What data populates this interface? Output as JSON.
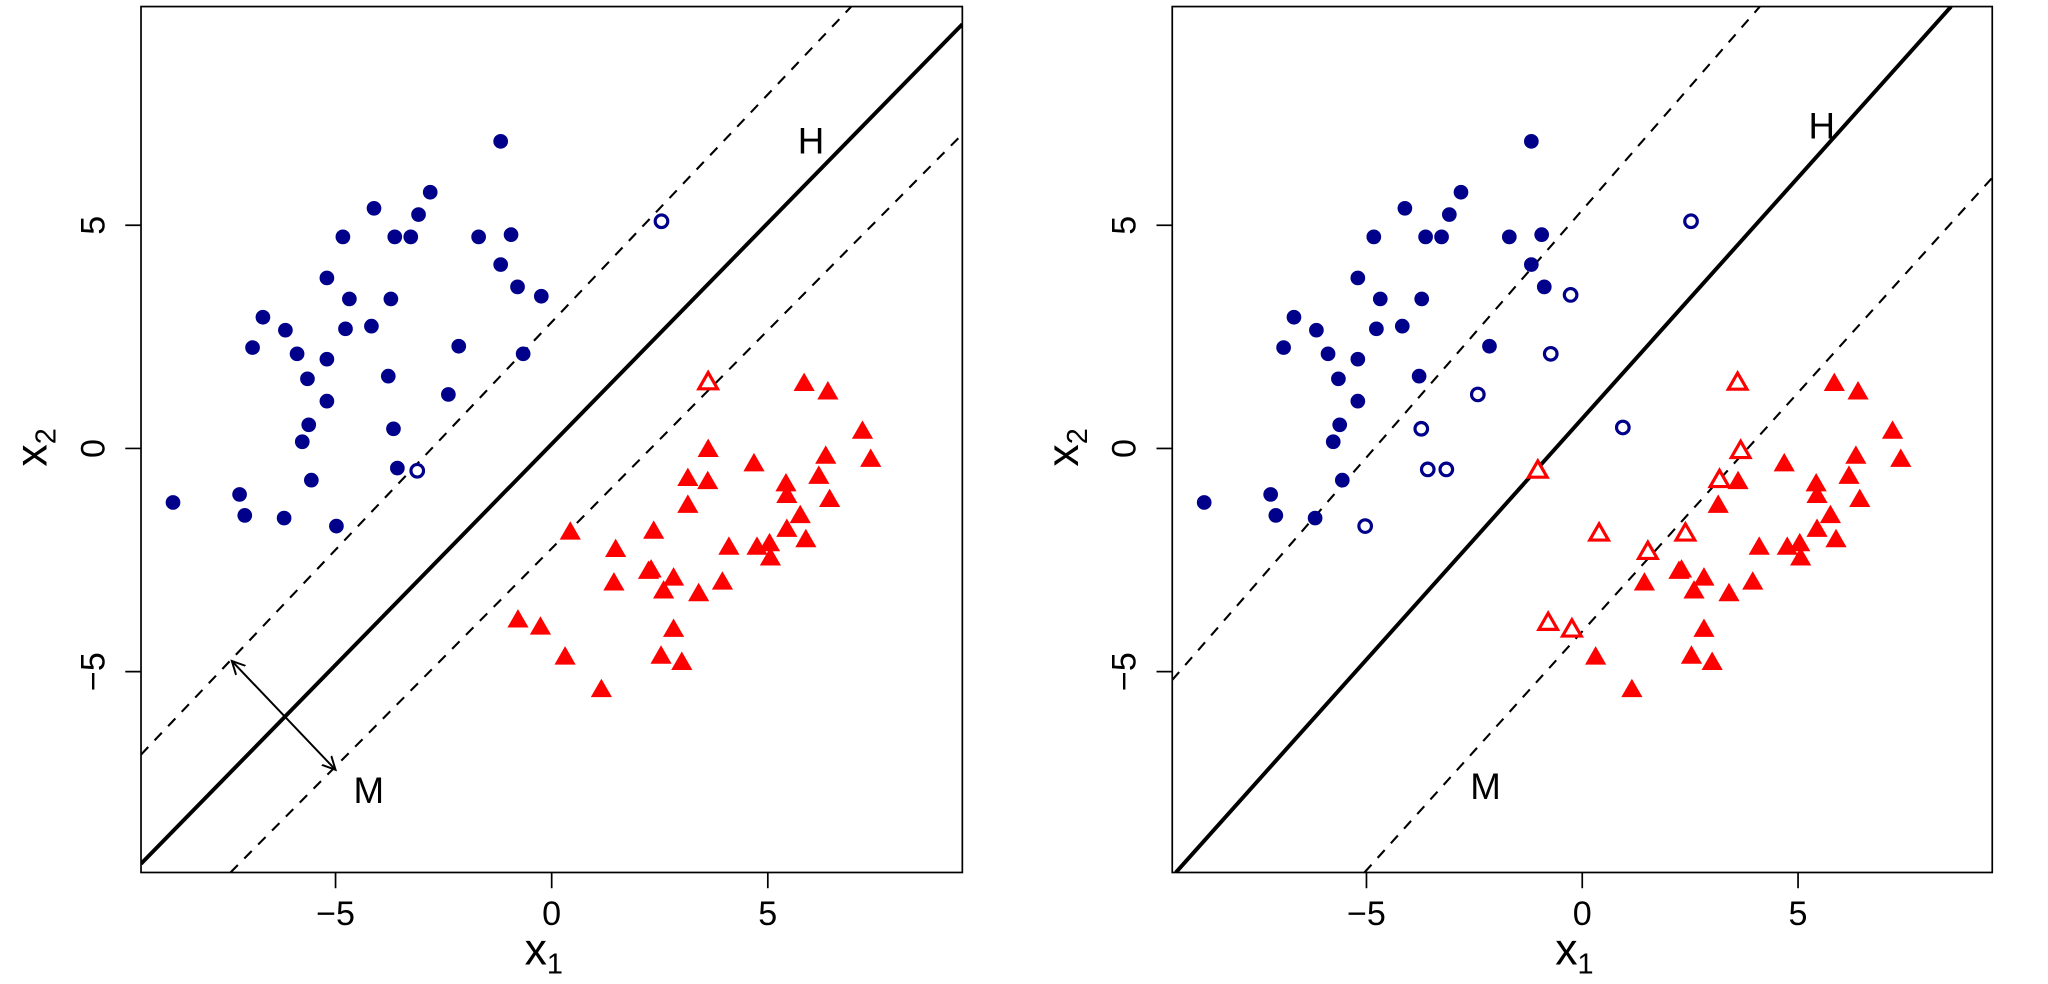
{
  "colors": {
    "class_a": "#00008B",
    "class_b": "#FF0000",
    "lines": "#000000"
  },
  "chart_data": [
    {
      "type": "scatter",
      "xlabel": "x",
      "xlabel_sub": "1",
      "ylabel": "x",
      "ylabel_sub": "2",
      "xlim": [
        -9.5,
        9.5
      ],
      "ylim": [
        -9.5,
        9.9
      ],
      "xticks": [
        -5,
        0,
        5
      ],
      "xtick_labels": [
        "−5",
        "0",
        "5"
      ],
      "yticks": [
        -5,
        0,
        5
      ],
      "ytick_labels": [
        "−5",
        "0",
        "5"
      ],
      "grid": false,
      "circles": [
        [
          -8.76,
          -1.21
        ],
        [
          -7.22,
          -1.03
        ],
        [
          -7.1,
          -1.5
        ],
        [
          -6.92,
          2.26
        ],
        [
          -6.68,
          2.94
        ],
        [
          -6.19,
          -1.56
        ],
        [
          -6.16,
          2.65
        ],
        [
          -5.89,
          2.12
        ],
        [
          -5.77,
          0.15
        ],
        [
          -5.65,
          1.56
        ],
        [
          -5.62,
          0.53
        ],
        [
          -5.56,
          -0.71
        ],
        [
          -5.2,
          2.0
        ],
        [
          -5.2,
          3.82
        ],
        [
          -5.2,
          1.06
        ],
        [
          -4.98,
          -1.74
        ],
        [
          -4.83,
          4.74
        ],
        [
          -4.77,
          2.68
        ],
        [
          -4.68,
          3.35
        ],
        [
          -4.17,
          2.74
        ],
        [
          -4.11,
          5.38
        ],
        [
          -3.63,
          4.74
        ],
        [
          -3.78,
          1.62
        ],
        [
          -3.72,
          3.35
        ],
        [
          -3.66,
          0.44
        ],
        [
          -3.57,
          -0.44
        ],
        [
          -3.26,
          4.74
        ],
        [
          -3.08,
          5.24
        ],
        [
          -2.81,
          5.74
        ],
        [
          -2.15,
          2.29
        ],
        [
          -2.39,
          1.21
        ],
        [
          -1.69,
          4.74
        ],
        [
          -1.18,
          6.88
        ],
        [
          -1.18,
          4.12
        ],
        [
          -0.94,
          4.79
        ],
        [
          -0.79,
          3.62
        ],
        [
          -0.66,
          2.12
        ],
        [
          -0.24,
          3.41
        ]
      ],
      "circles_open": [
        [
          -3.11,
          -0.5
        ],
        [
          2.54,
          5.09
        ]
      ],
      "triangles": [
        [
          5.84,
          1.45
        ],
        [
          6.39,
          1.26
        ],
        [
          7.19,
          0.38
        ],
        [
          3.62,
          -0.03
        ],
        [
          4.68,
          -0.35
        ],
        [
          6.34,
          -0.18
        ],
        [
          7.38,
          -0.25
        ],
        [
          3.15,
          -0.68
        ],
        [
          3.61,
          -0.75
        ],
        [
          5.42,
          -0.8
        ],
        [
          6.18,
          -0.63
        ],
        [
          5.44,
          -1.06
        ],
        [
          6.43,
          -1.15
        ],
        [
          3.15,
          -1.28
        ],
        [
          5.75,
          -1.51
        ],
        [
          0.43,
          -1.88
        ],
        [
          2.36,
          -1.86
        ],
        [
          5.44,
          -1.82
        ],
        [
          5.88,
          -2.05
        ],
        [
          1.48,
          -2.27
        ],
        [
          4.1,
          -2.22
        ],
        [
          4.75,
          -2.22
        ],
        [
          5.04,
          -2.14
        ],
        [
          5.06,
          -2.46
        ],
        [
          2.24,
          -2.76
        ],
        [
          2.3,
          -2.73
        ],
        [
          2.82,
          -2.91
        ],
        [
          1.44,
          -3.02
        ],
        [
          2.59,
          -3.2
        ],
        [
          3.4,
          -3.26
        ],
        [
          3.95,
          -3.0
        ],
        [
          -0.78,
          -3.85
        ],
        [
          -0.26,
          -4.01
        ],
        [
          2.82,
          -4.06
        ],
        [
          0.31,
          -4.68
        ],
        [
          2.53,
          -4.66
        ],
        [
          3.01,
          -4.8
        ],
        [
          1.15,
          -5.41
        ]
      ],
      "triangles_open": [
        [
          3.62,
          1.48
        ]
      ],
      "hyperplane": {
        "slope": 0.99,
        "intercept": 0.1,
        "label": "H",
        "label_at": [
          6.0,
          6.9
        ]
      },
      "margins": [
        {
          "slope": 1.02,
          "intercept": 2.83
        },
        {
          "slope": 0.977,
          "intercept": -2.24
        }
      ],
      "margin_arrow": [
        [
          -7.4,
          -4.76
        ],
        [
          -5.0,
          -7.2
        ]
      ],
      "margin_label": {
        "text": "M",
        "at": [
          -4.23,
          -7.65
        ]
      }
    },
    {
      "type": "scatter",
      "xlabel": "x",
      "xlabel_sub": "1",
      "ylabel": "x",
      "ylabel_sub": "2",
      "xlim": [
        -9.5,
        9.5
      ],
      "ylim": [
        -9.5,
        9.9
      ],
      "xticks": [
        -5,
        0,
        5
      ],
      "xtick_labels": [
        "−5",
        "0",
        "5"
      ],
      "yticks": [
        -5,
        0,
        5
      ],
      "ytick_labels": [
        "−5",
        "0",
        "5"
      ],
      "grid": false,
      "circles": [
        [
          -8.76,
          -1.21
        ],
        [
          -7.22,
          -1.03
        ],
        [
          -7.1,
          -1.5
        ],
        [
          -6.92,
          2.26
        ],
        [
          -6.68,
          2.94
        ],
        [
          -6.19,
          -1.56
        ],
        [
          -6.16,
          2.65
        ],
        [
          -5.89,
          2.12
        ],
        [
          -5.77,
          0.15
        ],
        [
          -5.65,
          1.56
        ],
        [
          -5.62,
          0.53
        ],
        [
          -5.56,
          -0.71
        ],
        [
          -5.2,
          2.0
        ],
        [
          -5.2,
          3.82
        ],
        [
          -5.2,
          1.06
        ],
        [
          -4.83,
          4.74
        ],
        [
          -4.77,
          2.68
        ],
        [
          -4.68,
          3.35
        ],
        [
          -4.17,
          2.74
        ],
        [
          -4.11,
          5.38
        ],
        [
          -3.63,
          4.74
        ],
        [
          -3.78,
          1.62
        ],
        [
          -3.72,
          3.35
        ],
        [
          -3.26,
          4.74
        ],
        [
          -3.08,
          5.24
        ],
        [
          -2.81,
          5.74
        ],
        [
          -2.15,
          2.29
        ],
        [
          -1.69,
          4.74
        ],
        [
          -1.18,
          6.88
        ],
        [
          -1.18,
          4.12
        ],
        [
          -0.94,
          4.79
        ],
        [
          -0.88,
          3.62
        ]
      ],
      "circles_open": [
        [
          -3.73,
          0.44
        ],
        [
          -3.58,
          -0.47
        ],
        [
          -3.15,
          -0.47
        ],
        [
          -5.03,
          -1.74
        ],
        [
          -2.42,
          1.21
        ],
        [
          -0.73,
          2.12
        ],
        [
          -0.27,
          3.44
        ],
        [
          0.94,
          0.47
        ],
        [
          2.52,
          5.09
        ]
      ],
      "triangles": [
        [
          5.84,
          1.45
        ],
        [
          6.39,
          1.26
        ],
        [
          7.19,
          0.38
        ],
        [
          4.68,
          -0.35
        ],
        [
          6.34,
          -0.18
        ],
        [
          7.38,
          -0.25
        ],
        [
          3.61,
          -0.75
        ],
        [
          5.42,
          -0.8
        ],
        [
          6.18,
          -0.63
        ],
        [
          5.44,
          -1.06
        ],
        [
          6.43,
          -1.15
        ],
        [
          3.15,
          -1.28
        ],
        [
          5.75,
          -1.51
        ],
        [
          5.44,
          -1.82
        ],
        [
          5.88,
          -2.05
        ],
        [
          4.1,
          -2.22
        ],
        [
          4.75,
          -2.22
        ],
        [
          5.04,
          -2.14
        ],
        [
          5.06,
          -2.46
        ],
        [
          2.24,
          -2.76
        ],
        [
          2.3,
          -2.73
        ],
        [
          2.82,
          -2.91
        ],
        [
          1.44,
          -3.02
        ],
        [
          2.59,
          -3.2
        ],
        [
          3.4,
          -3.26
        ],
        [
          3.95,
          -3.0
        ],
        [
          2.82,
          -4.06
        ],
        [
          0.31,
          -4.68
        ],
        [
          2.53,
          -4.66
        ],
        [
          3.01,
          -4.8
        ],
        [
          1.15,
          -5.41
        ]
      ],
      "triangles_open": [
        [
          -1.03,
          -0.5
        ],
        [
          0.39,
          -1.91
        ],
        [
          1.52,
          -2.32
        ],
        [
          2.39,
          -1.91
        ],
        [
          3.18,
          -0.71
        ],
        [
          3.67,
          -0.06
        ],
        [
          3.6,
          1.47
        ],
        [
          -0.79,
          -3.91
        ],
        [
          -0.24,
          -4.06
        ]
      ],
      "hyperplane": {
        "slope": 1.08,
        "intercept": 0.67,
        "label": "H",
        "label_at": [
          5.55,
          7.24
        ]
      },
      "margins": [
        {
          "slope": 1.108,
          "intercept": 5.34
        },
        {
          "slope": 1.07,
          "intercept": -4.1
        }
      ],
      "margin_label": {
        "text": "M",
        "at": [
          -2.24,
          -7.56
        ]
      }
    }
  ]
}
